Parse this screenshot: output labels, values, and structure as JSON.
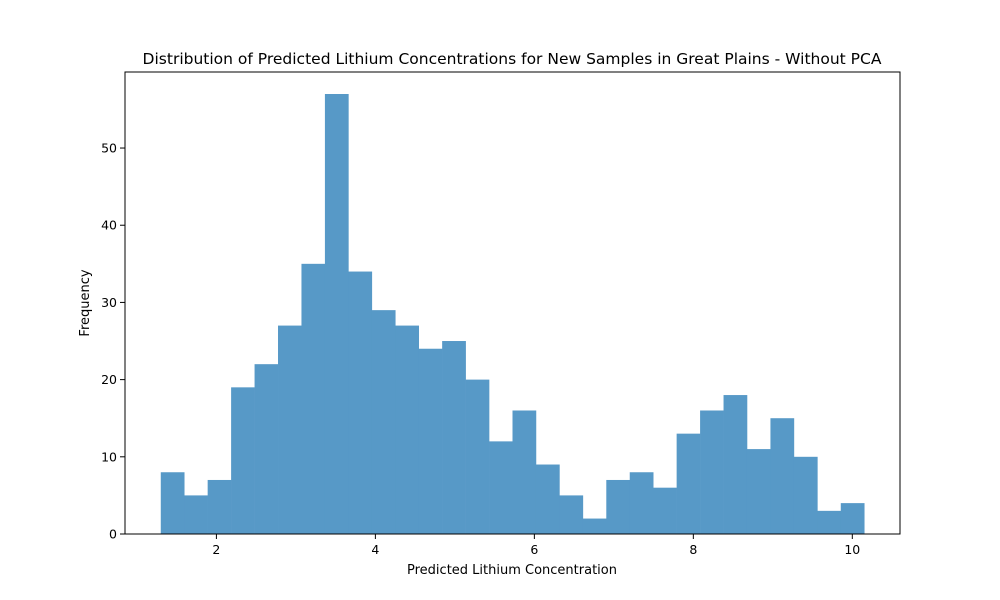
{
  "chart_data": {
    "type": "bar",
    "title": "Distribution of Predicted Lithium Concentrations for New Samples in Great Plains - Without PCA",
    "xlabel": "Predicted Lithium Concentration",
    "ylabel": "Frequency",
    "xlim": [
      0.85,
      10.6
    ],
    "ylim": [
      0,
      59.85
    ],
    "bin_start": 1.3,
    "bin_width": 0.295,
    "values": [
      8,
      5,
      7,
      19,
      22,
      27,
      35,
      57,
      34,
      29,
      27,
      24,
      25,
      20,
      12,
      16,
      9,
      5,
      2,
      7,
      8,
      6,
      13,
      16,
      18,
      11,
      15,
      10,
      3,
      4
    ],
    "x_ticks": [
      2,
      4,
      6,
      8,
      10
    ],
    "y_ticks": [
      0,
      10,
      20,
      30,
      40,
      50
    ],
    "bar_color": "#5799c7",
    "grid": false,
    "legend": "none"
  }
}
